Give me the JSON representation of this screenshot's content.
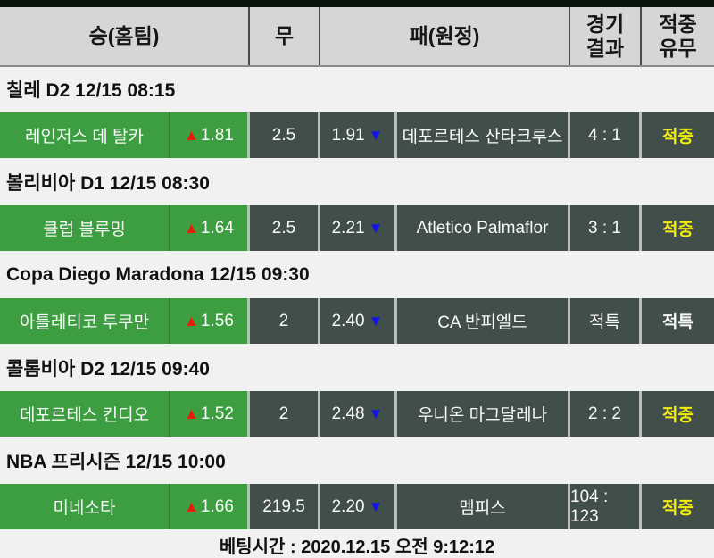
{
  "table": {
    "header": {
      "col_home": "승(홈팀)",
      "col_draw": "무",
      "col_away": "패(원정)",
      "col_result": "경기\n결과",
      "col_hit": "적중\n유무"
    }
  },
  "icons": {
    "up_triangle": "▲",
    "down_triangle": "▼"
  },
  "colors": {
    "green_cell": "#3d9e41",
    "dark_cell": "#414e49",
    "hit_yellow": "#f2ee0b",
    "hit_white": "#f7f8f7",
    "up_red": "#ea1c0d",
    "down_blue": "#1313ea"
  },
  "sections": [
    {
      "label": "칠레 D2 12/15 08:15",
      "row": {
        "home_team": "레인저스 데 탈카",
        "home_odds": "1.81",
        "draw": "2.5",
        "away_odds": "1.91",
        "away_team": "데포르테스 산타크루스",
        "result": "4 : 1",
        "hit": "적중",
        "hit_color": "#f2ee0b"
      }
    },
    {
      "label": "볼리비아 D1 12/15 08:30",
      "row": {
        "home_team": "클럽 블루밍",
        "home_odds": "1.64",
        "draw": "2.5",
        "away_odds": "2.21",
        "away_team": "Atletico Palmaflor",
        "result": "3 : 1",
        "hit": "적중",
        "hit_color": "#f2ee0b"
      }
    },
    {
      "label": "Copa Diego Maradona 12/15 09:30",
      "row": {
        "home_team": "아틀레티코 투쿠만",
        "home_odds": "1.56",
        "draw": "2",
        "away_odds": "2.40",
        "away_team": "CA 반피엘드",
        "result": "적특",
        "hit": "적특",
        "hit_color": "#f7f8f7"
      }
    },
    {
      "label": "콜롬비아 D2 12/15 09:40",
      "row": {
        "home_team": "데포르테스 킨디오",
        "home_odds": "1.52",
        "draw": "2",
        "away_odds": "2.48",
        "away_team": "우니온 마그달레나",
        "result": "2 : 2",
        "hit": "적중",
        "hit_color": "#f2ee0b"
      }
    },
    {
      "label": "NBA 프리시즌 12/15 10:00",
      "row": {
        "home_team": "미네소타",
        "home_odds": "1.66",
        "draw": "219.5",
        "away_odds": "2.20",
        "away_team": "멤피스",
        "result": "104 : 123",
        "hit": "적중",
        "hit_color": "#f2ee0b"
      }
    }
  ],
  "footer": {
    "betting_time": "베팅시간 : 2020.12.15 오전 9:12:12"
  }
}
